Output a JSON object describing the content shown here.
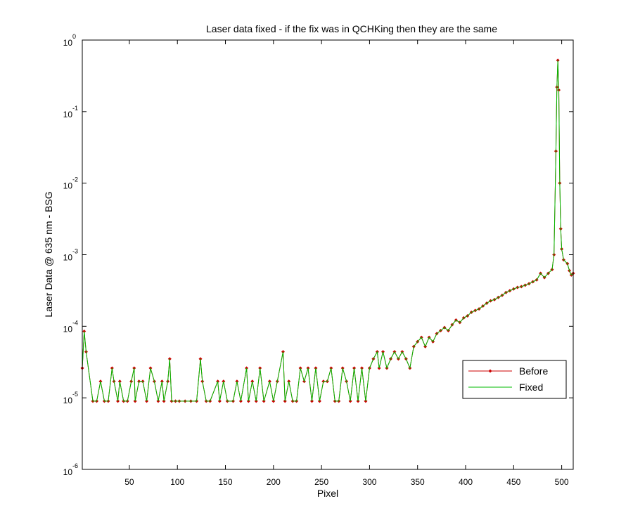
{
  "chart_data": {
    "type": "line",
    "title": "Laser data fixed - if the fix was in QCHKing then they are the same",
    "xlabel": "Pixel",
    "ylabel": "Laser Data @ 635 nm - BSG",
    "log_y": true,
    "legend": "lower right",
    "xlim": [
      1,
      512
    ],
    "xticks": [
      50,
      100,
      150,
      200,
      250,
      300,
      350,
      400,
      450,
      500
    ],
    "ylim": [
      1e-06,
      1
    ],
    "yticks": [
      {
        "value": 1e-06,
        "label": "10",
        "exponent": "-6"
      },
      {
        "value": 1e-05,
        "label": "10",
        "exponent": "-5"
      },
      {
        "value": 0.0001,
        "label": "10",
        "exponent": "-4"
      },
      {
        "value": 0.001,
        "label": "10",
        "exponent": "-3"
      },
      {
        "value": 0.01,
        "label": "10",
        "exponent": "-2"
      },
      {
        "value": 0.1,
        "label": "10",
        "exponent": "-1"
      },
      {
        "value": 1,
        "label": "10",
        "exponent": "0"
      }
    ],
    "x": [
      1,
      3,
      5,
      12,
      16,
      20,
      24,
      28,
      32,
      34,
      38,
      40,
      44,
      48,
      52,
      55,
      56,
      60,
      64,
      68,
      72,
      76,
      80,
      84,
      86,
      90,
      92,
      94,
      98,
      102,
      108,
      114,
      120,
      124,
      126,
      130,
      134,
      142,
      144,
      148,
      152,
      158,
      162,
      166,
      172,
      174,
      178,
      182,
      186,
      190,
      196,
      200,
      204,
      210,
      212,
      216,
      220,
      224,
      228,
      232,
      236,
      240,
      244,
      248,
      252,
      256,
      260,
      264,
      268,
      272,
      276,
      280,
      284,
      288,
      292,
      296,
      300,
      304,
      308,
      310,
      314,
      318,
      322,
      326,
      330,
      334,
      338,
      342,
      346,
      350,
      354,
      358,
      362,
      366,
      370,
      374,
      378,
      382,
      386,
      390,
      394,
      398,
      402,
      406,
      410,
      414,
      418,
      422,
      426,
      430,
      434,
      438,
      442,
      446,
      450,
      454,
      458,
      462,
      466,
      470,
      474,
      478,
      482,
      486,
      490,
      492,
      494,
      495,
      496,
      497,
      498,
      499,
      500,
      502,
      506,
      508,
      510,
      512
    ],
    "series": [
      {
        "name": "Before",
        "color": "#cc0000",
        "marker": true,
        "values": [
          2.6e-05,
          8.5e-05,
          4.4e-05,
          9e-06,
          9e-06,
          1.7e-05,
          9e-06,
          9e-06,
          2.6e-05,
          1.7e-05,
          9e-06,
          1.7e-05,
          9e-06,
          9e-06,
          1.7e-05,
          2.6e-05,
          9e-06,
          1.7e-05,
          1.7e-05,
          9e-06,
          2.6e-05,
          1.7e-05,
          9e-06,
          1.7e-05,
          9e-06,
          1.7e-05,
          3.5e-05,
          9e-06,
          9e-06,
          9e-06,
          9e-06,
          9e-06,
          9e-06,
          3.5e-05,
          1.7e-05,
          9e-06,
          9e-06,
          1.7e-05,
          9e-06,
          1.7e-05,
          9e-06,
          9e-06,
          1.7e-05,
          9e-06,
          2.6e-05,
          9e-06,
          1.7e-05,
          9e-06,
          2.6e-05,
          9e-06,
          1.7e-05,
          9e-06,
          1.7e-05,
          4.4e-05,
          9e-06,
          1.7e-05,
          9e-06,
          9e-06,
          2.6e-05,
          1.7e-05,
          2.6e-05,
          9e-06,
          2.6e-05,
          9e-06,
          1.7e-05,
          1.7e-05,
          2.6e-05,
          9e-06,
          9e-06,
          2.6e-05,
          1.7e-05,
          9e-06,
          2.6e-05,
          9e-06,
          2.6e-05,
          9e-06,
          2.6e-05,
          3.5e-05,
          4.4e-05,
          2.6e-05,
          4.4e-05,
          2.6e-05,
          3.5e-05,
          4.4e-05,
          3.5e-05,
          4.4e-05,
          3.5e-05,
          2.6e-05,
          5.2e-05,
          6.1e-05,
          7e-05,
          5.2e-05,
          7e-05,
          6.1e-05,
          7.9e-05,
          8.7e-05,
          9.6e-05,
          8.7e-05,
          0.000105,
          0.000122,
          0.000113,
          0.000131,
          0.00014,
          0.000157,
          0.000166,
          0.000175,
          0.000192,
          0.00021,
          0.000227,
          0.000236,
          0.000253,
          0.000271,
          0.000297,
          0.000314,
          0.000332,
          0.000349,
          0.000358,
          0.000375,
          0.000393,
          0.000419,
          0.000445,
          0.00055,
          0.00048,
          0.00055,
          0.00062,
          0.001,
          0.028,
          0.22,
          0.52,
          0.2,
          0.01,
          0.0023,
          0.0012,
          0.00085,
          0.00075,
          0.0006,
          0.00052,
          0.00055
        ]
      },
      {
        "name": "Fixed",
        "color": "#00bb00",
        "marker": false,
        "values": [
          2.6e-05,
          8.5e-05,
          4.4e-05,
          9e-06,
          9e-06,
          1.7e-05,
          9e-06,
          9e-06,
          2.6e-05,
          1.7e-05,
          9e-06,
          1.7e-05,
          9e-06,
          9e-06,
          1.7e-05,
          2.6e-05,
          9e-06,
          1.7e-05,
          1.7e-05,
          9e-06,
          2.6e-05,
          1.7e-05,
          9e-06,
          1.7e-05,
          9e-06,
          1.7e-05,
          3.5e-05,
          9e-06,
          9e-06,
          9e-06,
          9e-06,
          9e-06,
          9e-06,
          3.5e-05,
          1.7e-05,
          9e-06,
          9e-06,
          1.7e-05,
          9e-06,
          1.7e-05,
          9e-06,
          9e-06,
          1.7e-05,
          9e-06,
          2.6e-05,
          9e-06,
          1.7e-05,
          9e-06,
          2.6e-05,
          9e-06,
          1.7e-05,
          9e-06,
          1.7e-05,
          4.4e-05,
          9e-06,
          1.7e-05,
          9e-06,
          9e-06,
          2.6e-05,
          1.7e-05,
          2.6e-05,
          9e-06,
          2.6e-05,
          9e-06,
          1.7e-05,
          1.7e-05,
          2.6e-05,
          9e-06,
          9e-06,
          2.6e-05,
          1.7e-05,
          9e-06,
          2.6e-05,
          9e-06,
          2.6e-05,
          9e-06,
          2.6e-05,
          3.5e-05,
          4.4e-05,
          2.6e-05,
          4.4e-05,
          2.6e-05,
          3.5e-05,
          4.4e-05,
          3.5e-05,
          4.4e-05,
          3.5e-05,
          2.6e-05,
          5.2e-05,
          6.1e-05,
          7e-05,
          5.2e-05,
          7e-05,
          6.1e-05,
          7.9e-05,
          8.7e-05,
          9.6e-05,
          8.7e-05,
          0.000105,
          0.000122,
          0.000113,
          0.000131,
          0.00014,
          0.000157,
          0.000166,
          0.000175,
          0.000192,
          0.00021,
          0.000227,
          0.000236,
          0.000253,
          0.000271,
          0.000297,
          0.000314,
          0.000332,
          0.000349,
          0.000358,
          0.000375,
          0.000393,
          0.000419,
          0.000445,
          0.00055,
          0.00048,
          0.00055,
          0.00062,
          0.001,
          0.028,
          0.22,
          0.52,
          0.2,
          0.01,
          0.0023,
          0.0012,
          0.00085,
          0.00075,
          0.0006,
          0.00052,
          0.00055
        ]
      }
    ]
  }
}
